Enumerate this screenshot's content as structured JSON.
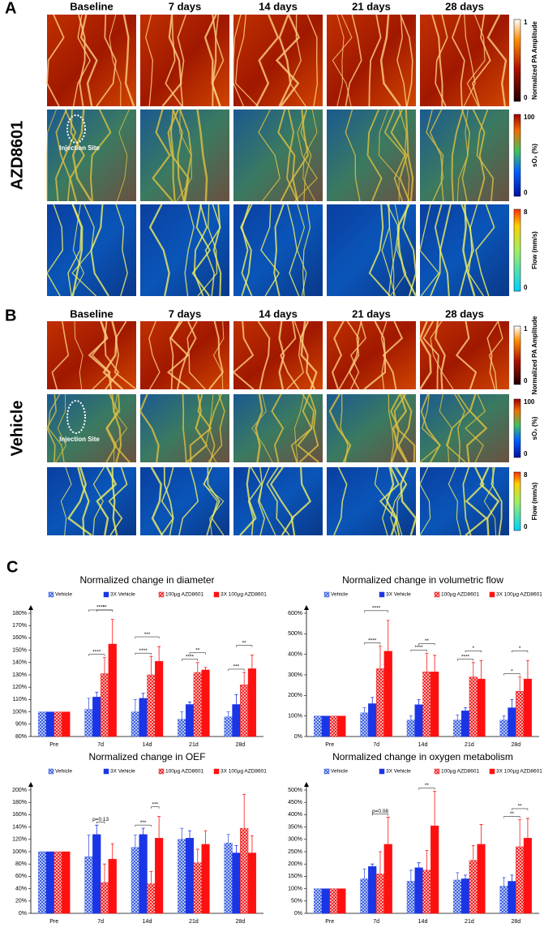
{
  "panels": [
    {
      "label": "A",
      "group": "AZD8601",
      "columns": [
        "Baseline",
        "7 days",
        "14 days",
        "21 days",
        "28 days"
      ],
      "injection_label": "Injection Site",
      "colorbars": [
        {
          "max": 1,
          "min": 0,
          "label": "Normalized PA Amplitude"
        },
        {
          "max": 100,
          "min": 0,
          "label": "sO₂ (%)"
        },
        {
          "max": 8,
          "min": 0,
          "label": "Flow (mm/s)"
        }
      ]
    },
    {
      "label": "B",
      "group": "Vehicle",
      "columns": [
        "Baseline",
        "7 days",
        "14 days",
        "21 days",
        "28 days"
      ],
      "injection_label": "Injection Site",
      "colorbars": [
        {
          "max": 1,
          "min": 0,
          "label": "Normalized PA Amplitude"
        },
        {
          "max": 100,
          "min": 0,
          "label": "sO₂ (%)"
        },
        {
          "max": 8,
          "min": 0,
          "label": "Flow (mm/s)"
        }
      ]
    }
  ],
  "panel_c_label": "C",
  "chart_data": [
    {
      "type": "bar",
      "title": "Normalized change in diameter",
      "categories": [
        "Pre",
        "7d",
        "14d",
        "21d",
        "28d"
      ],
      "ylim": [
        80,
        180
      ],
      "yticks": [
        {
          "value": 80,
          "label": "80%"
        },
        {
          "value": 90,
          "label": "90%"
        },
        {
          "value": 100,
          "label": "100%"
        },
        {
          "value": 110,
          "label": "110%"
        },
        {
          "value": 120,
          "label": "120%"
        },
        {
          "value": 130,
          "label": "130%"
        },
        {
          "value": 140,
          "label": "140%"
        },
        {
          "value": 150,
          "label": "150%"
        },
        {
          "value": 160,
          "label": "160%"
        },
        {
          "value": 170,
          "label": "170%"
        },
        {
          "value": 180,
          "label": "180%"
        }
      ],
      "series": [
        {
          "name": "Vehicle",
          "color": "#3a5fe0",
          "hatched": true,
          "values": [
            100,
            102,
            100,
            94,
            96
          ],
          "errors": [
            0,
            9,
            10,
            6,
            4
          ]
        },
        {
          "name": "3X Vehicle",
          "color": "#1a35e6",
          "hatched": false,
          "values": [
            100,
            112,
            111,
            106,
            106
          ],
          "errors": [
            0,
            4,
            4,
            2,
            8
          ]
        },
        {
          "name": "100µg AZD8601",
          "color": "#f02020",
          "hatched": true,
          "values": [
            100,
            131,
            130,
            132,
            122
          ],
          "errors": [
            0,
            13,
            15,
            8,
            10
          ]
        },
        {
          "name": "3X 100µg AZD8601",
          "color": "#ff1010",
          "hatched": false,
          "values": [
            100,
            155,
            141,
            134,
            135
          ],
          "errors": [
            0,
            20,
            12,
            2,
            11
          ]
        }
      ],
      "brackets": [
        {
          "category": 1,
          "series": [
            0,
            2
          ],
          "label": "****"
        },
        {
          "category": 1,
          "series": [
            1,
            3
          ],
          "label": "**"
        },
        {
          "category": 1,
          "series": [
            0,
            3
          ],
          "label": "****"
        },
        {
          "category": 2,
          "series": [
            0,
            2
          ],
          "label": "****"
        },
        {
          "category": 2,
          "series": [
            0,
            3
          ],
          "label": "***"
        },
        {
          "category": 3,
          "series": [
            0,
            2
          ],
          "label": "****"
        },
        {
          "category": 3,
          "series": [
            1,
            3
          ],
          "label": "**"
        },
        {
          "category": 4,
          "series": [
            0,
            2
          ],
          "label": "***"
        },
        {
          "category": 4,
          "series": [
            1,
            3
          ],
          "label": "**"
        }
      ]
    },
    {
      "type": "bar",
      "title": "Normalized change in volumetric flow",
      "categories": [
        "Pre",
        "7d",
        "14d",
        "21d",
        "28d"
      ],
      "ylim": [
        0,
        600
      ],
      "yticks": [
        {
          "value": 0,
          "label": "0%"
        },
        {
          "value": 100,
          "label": "100%"
        },
        {
          "value": 200,
          "label": "200%"
        },
        {
          "value": 300,
          "label": "300%"
        },
        {
          "value": 400,
          "label": "400%"
        },
        {
          "value": 500,
          "label": "500%"
        },
        {
          "value": 600,
          "label": "600%"
        }
      ],
      "series": [
        {
          "name": "Vehicle",
          "color": "#3a5fe0",
          "hatched": true,
          "values": [
            100,
            115,
            80,
            80,
            80
          ],
          "errors": [
            0,
            25,
            20,
            25,
            20
          ]
        },
        {
          "name": "3X Vehicle",
          "color": "#1a35e6",
          "hatched": false,
          "values": [
            100,
            160,
            155,
            125,
            140
          ],
          "errors": [
            0,
            30,
            25,
            15,
            40
          ]
        },
        {
          "name": "100µg AZD8601",
          "color": "#f02020",
          "hatched": true,
          "values": [
            100,
            330,
            315,
            290,
            220
          ],
          "errors": [
            0,
            110,
            90,
            70,
            70
          ]
        },
        {
          "name": "3X 100µg AZD8601",
          "color": "#ff1010",
          "hatched": false,
          "values": [
            100,
            415,
            315,
            280,
            280
          ],
          "errors": [
            0,
            150,
            80,
            90,
            90
          ]
        }
      ],
      "brackets": [
        {
          "category": 1,
          "series": [
            0,
            2
          ],
          "label": "****"
        },
        {
          "category": 1,
          "series": [
            0,
            3
          ],
          "label": "****"
        },
        {
          "category": 2,
          "series": [
            0,
            2
          ],
          "label": "****"
        },
        {
          "category": 2,
          "series": [
            1,
            3
          ],
          "label": "**"
        },
        {
          "category": 3,
          "series": [
            0,
            2
          ],
          "label": "****"
        },
        {
          "category": 3,
          "series": [
            1,
            3
          ],
          "label": "*"
        },
        {
          "category": 4,
          "series": [
            0,
            2
          ],
          "label": "*"
        },
        {
          "category": 4,
          "series": [
            1,
            3
          ],
          "label": "*"
        }
      ]
    },
    {
      "type": "bar",
      "title": "Normalized change in OEF",
      "categories": [
        "Pre",
        "7d",
        "14d",
        "21d",
        "28d"
      ],
      "ylim": [
        0,
        200
      ],
      "yticks": [
        {
          "value": 0,
          "label": "0%"
        },
        {
          "value": 20,
          "label": "20%"
        },
        {
          "value": 40,
          "label": "40%"
        },
        {
          "value": 60,
          "label": "60%"
        },
        {
          "value": 80,
          "label": "80%"
        },
        {
          "value": 100,
          "label": "100%"
        },
        {
          "value": 120,
          "label": "120%"
        },
        {
          "value": 140,
          "label": "140%"
        },
        {
          "value": 160,
          "label": "160%"
        },
        {
          "value": 180,
          "label": "180%"
        },
        {
          "value": 200,
          "label": "200%"
        }
      ],
      "series": [
        {
          "name": "Vehicle",
          "color": "#3a5fe0",
          "hatched": true,
          "values": [
            100,
            92,
            107,
            120,
            114
          ],
          "errors": [
            0,
            35,
            20,
            18,
            14
          ]
        },
        {
          "name": "3X Vehicle",
          "color": "#1a35e6",
          "hatched": false,
          "values": [
            100,
            128,
            128,
            122,
            98
          ],
          "errors": [
            0,
            15,
            10,
            12,
            12
          ]
        },
        {
          "name": "100µg AZD8601",
          "color": "#f02020",
          "hatched": true,
          "values": [
            100,
            50,
            48,
            82,
            138
          ],
          "errors": [
            0,
            30,
            20,
            22,
            55
          ]
        },
        {
          "name": "3X 100µg AZD8601",
          "color": "#ff1010",
          "hatched": false,
          "values": [
            100,
            88,
            122,
            112,
            98
          ],
          "errors": [
            0,
            25,
            35,
            22,
            28
          ]
        }
      ],
      "brackets": [
        {
          "category": 1,
          "series": [
            1,
            2
          ],
          "label": "p=0.13"
        },
        {
          "category": 2,
          "series": [
            0,
            2
          ],
          "label": "***"
        },
        {
          "category": 2,
          "series": [
            2,
            3
          ],
          "label": "***"
        }
      ]
    },
    {
      "type": "bar",
      "title": "Normalized change in oxygen metabolism",
      "categories": [
        "Pre",
        "7d",
        "14d",
        "21d",
        "28d"
      ],
      "ylim": [
        0,
        500
      ],
      "yticks": [
        {
          "value": 0,
          "label": "0%"
        },
        {
          "value": 50,
          "label": "50%"
        },
        {
          "value": 100,
          "label": "100%"
        },
        {
          "value": 150,
          "label": "150%"
        },
        {
          "value": 200,
          "label": "200%"
        },
        {
          "value": 250,
          "label": "250%"
        },
        {
          "value": 300,
          "label": "300%"
        },
        {
          "value": 350,
          "label": "350%"
        },
        {
          "value": 400,
          "label": "400%"
        },
        {
          "value": 450,
          "label": "450%"
        },
        {
          "value": 500,
          "label": "500%"
        }
      ],
      "series": [
        {
          "name": "Vehicle",
          "color": "#3a5fe0",
          "hatched": true,
          "values": [
            100,
            140,
            130,
            135,
            110
          ],
          "errors": [
            0,
            40,
            45,
            30,
            35
          ]
        },
        {
          "name": "3X Vehicle",
          "color": "#1a35e6",
          "hatched": false,
          "values": [
            100,
            190,
            185,
            140,
            130
          ],
          "errors": [
            0,
            10,
            20,
            15,
            25
          ]
        },
        {
          "name": "100µg AZD8601",
          "color": "#f02020",
          "hatched": true,
          "values": [
            100,
            160,
            175,
            215,
            270
          ],
          "errors": [
            0,
            90,
            80,
            60,
            110
          ]
        },
        {
          "name": "3X 100µg AZD8601",
          "color": "#ff1010",
          "hatched": false,
          "values": [
            100,
            280,
            355,
            280,
            305
          ],
          "errors": [
            0,
            110,
            140,
            80,
            80
          ]
        }
      ],
      "brackets": [
        {
          "category": 1,
          "series": [
            1,
            3
          ],
          "label": "p=0.08"
        },
        {
          "category": 2,
          "series": [
            1,
            3
          ],
          "label": "**"
        },
        {
          "category": 4,
          "series": [
            0,
            2
          ],
          "label": "**"
        },
        {
          "category": 4,
          "series": [
            1,
            3
          ],
          "label": "**"
        }
      ]
    }
  ]
}
